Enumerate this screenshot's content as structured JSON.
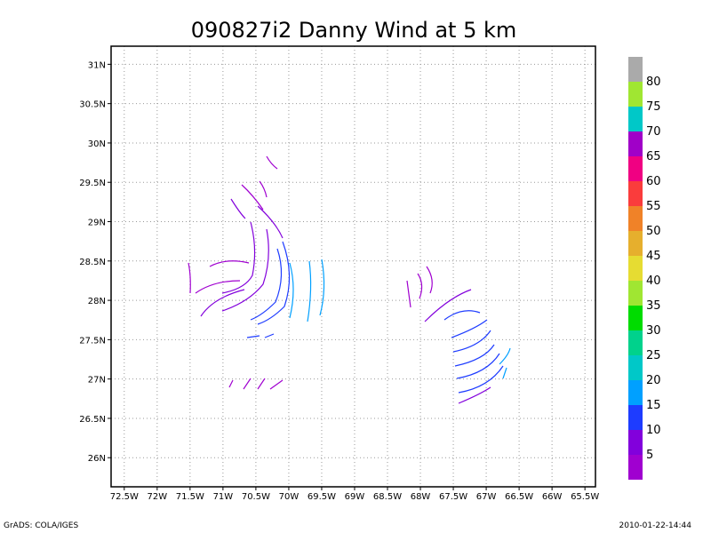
{
  "title": "090827i2 Danny Wind at 5 km",
  "map": {
    "xlim": [
      -72.7,
      -65.34
    ],
    "ylim": [
      25.63,
      31.23
    ],
    "grid": true,
    "xticks": [
      {
        "value": -72.5,
        "label": "72.5W"
      },
      {
        "value": -72,
        "label": "72W"
      },
      {
        "value": -71.5,
        "label": "71.5W"
      },
      {
        "value": -71,
        "label": "71W"
      },
      {
        "value": -70.5,
        "label": "70.5W"
      },
      {
        "value": -70,
        "label": "70W"
      },
      {
        "value": -69.5,
        "label": "69.5W"
      },
      {
        "value": -69,
        "label": "69W"
      },
      {
        "value": -68.5,
        "label": "68.5W"
      },
      {
        "value": -68,
        "label": "68W"
      },
      {
        "value": -67.5,
        "label": "67.5W"
      },
      {
        "value": -67,
        "label": "67W"
      },
      {
        "value": -66.5,
        "label": "66.5W"
      },
      {
        "value": -66,
        "label": "66W"
      },
      {
        "value": -65.5,
        "label": "65.5W"
      }
    ],
    "yticks": [
      {
        "value": 26,
        "label": "26N"
      },
      {
        "value": 26.5,
        "label": "26.5N"
      },
      {
        "value": 27,
        "label": "27N"
      },
      {
        "value": 27.5,
        "label": "27.5N"
      },
      {
        "value": 28,
        "label": "28N"
      },
      {
        "value": 28.5,
        "label": "28.5N"
      },
      {
        "value": 29,
        "label": "29N"
      },
      {
        "value": 29.5,
        "label": "29.5N"
      },
      {
        "value": 30,
        "label": "30N"
      },
      {
        "value": 30.5,
        "label": "30.5N"
      },
      {
        "value": 31,
        "label": "31N"
      }
    ]
  },
  "colorbar": {
    "levels": [
      5,
      10,
      15,
      20,
      25,
      30,
      35,
      40,
      45,
      50,
      55,
      60,
      65,
      70,
      75,
      80
    ],
    "colors": [
      "#a000d0",
      "#8200dc",
      "#1e3cff",
      "#00a0ff",
      "#00c8c8",
      "#00d28c",
      "#00dc00",
      "#a0e632",
      "#e6dc32",
      "#e6af2d",
      "#f08228",
      "#fa3c3c",
      "#f00082",
      "#a000c8",
      "#00c8c8",
      "#a0e632",
      "#aaaaaa"
    ]
  },
  "footer": {
    "left": "GrADS: COLA/IGES",
    "right": "2010-01-22-14:44"
  }
}
